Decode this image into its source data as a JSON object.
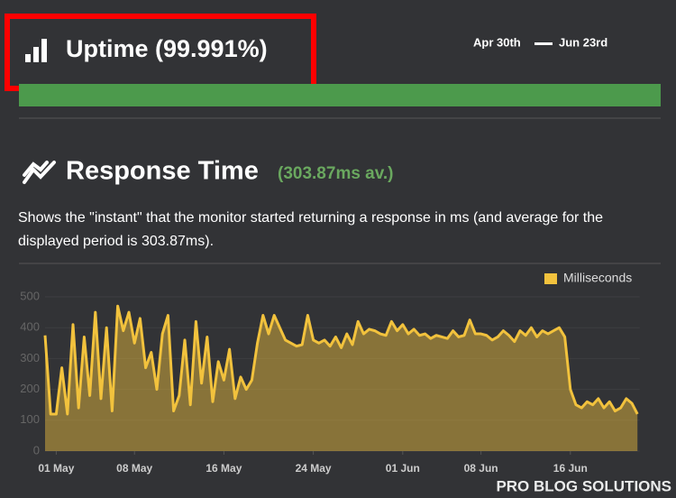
{
  "header": {
    "title": "Uptime (99.991%)",
    "date_from": "Apr 30th",
    "date_to": "Jun 23rd"
  },
  "response": {
    "title": "Response Time",
    "average": "(303.87ms av.)",
    "description": "Shows the \"instant\" that the monitor started returning a response in ms (and average for the displayed period is 303.87ms)."
  },
  "watermark": "PRO BLOG SOLUTIONS",
  "chart_data": {
    "type": "line",
    "x": [
      0,
      0.5,
      1,
      1.5,
      2,
      2.5,
      3,
      3.5,
      4,
      4.5,
      5,
      5.5,
      6,
      6.5,
      7,
      7.5,
      8,
      8.5,
      9,
      9.5,
      10,
      10.5,
      11,
      11.5,
      12,
      12.5,
      13,
      13.5,
      14,
      14.5,
      15,
      15.5,
      16,
      16.5,
      17,
      17.5,
      18,
      18.5,
      19,
      19.5,
      20,
      20.5,
      21,
      21.5,
      22,
      22.5,
      23,
      23.5,
      24,
      24.5,
      25,
      25.5,
      26,
      26.5,
      27,
      27.5,
      28,
      28.5,
      29,
      29.5,
      30,
      30.5,
      31,
      31.5,
      32,
      32.5,
      33,
      33.5,
      34,
      34.5,
      35,
      35.5,
      36,
      36.5,
      37,
      37.5,
      38,
      38.5,
      39,
      39.5,
      40,
      40.5,
      41,
      41.5,
      42,
      42.5,
      43,
      43.5,
      44,
      44.5,
      45,
      45.5,
      46,
      46.5,
      47,
      47.5,
      48,
      48.5,
      49,
      49.5,
      50,
      50.5,
      51,
      51.5,
      52,
      52.5,
      53
    ],
    "series": [
      {
        "name": "Milliseconds",
        "color": "#f2c23d",
        "values": [
          375,
          120,
          120,
          270,
          120,
          410,
          140,
          370,
          180,
          450,
          170,
          400,
          130,
          470,
          390,
          450,
          350,
          430,
          270,
          320,
          200,
          380,
          440,
          130,
          180,
          360,
          150,
          420,
          220,
          370,
          160,
          290,
          230,
          330,
          170,
          240,
          200,
          230,
          350,
          440,
          380,
          440,
          400,
          360,
          350,
          340,
          345,
          440,
          360,
          350,
          360,
          340,
          370,
          335,
          380,
          345,
          420,
          380,
          395,
          390,
          380,
          375,
          420,
          390,
          410,
          380,
          395,
          375,
          380,
          365,
          375,
          370,
          365,
          390,
          370,
          375,
          425,
          380,
          380,
          375,
          360,
          370,
          390,
          375,
          355,
          390,
          375,
          400,
          370,
          390,
          380,
          390,
          400,
          370,
          200,
          150,
          140,
          160,
          150,
          170,
          140,
          160,
          130,
          140,
          170,
          155,
          120
        ]
      }
    ],
    "xlim": [
      0,
      53.2
    ],
    "xticks": [
      {
        "value": 1,
        "label": "01 May"
      },
      {
        "value": 8,
        "label": "08 May"
      },
      {
        "value": 16,
        "label": "16 May"
      },
      {
        "value": 24,
        "label": "24 May"
      },
      {
        "value": 32,
        "label": "01 Jun"
      },
      {
        "value": 39,
        "label": "08 Jun"
      },
      {
        "value": 47,
        "label": "16 Jun"
      }
    ],
    "ylim": [
      0,
      500
    ],
    "yticks": [
      0,
      100,
      200,
      300,
      400,
      500
    ],
    "grid": true,
    "legend": "top-right"
  }
}
